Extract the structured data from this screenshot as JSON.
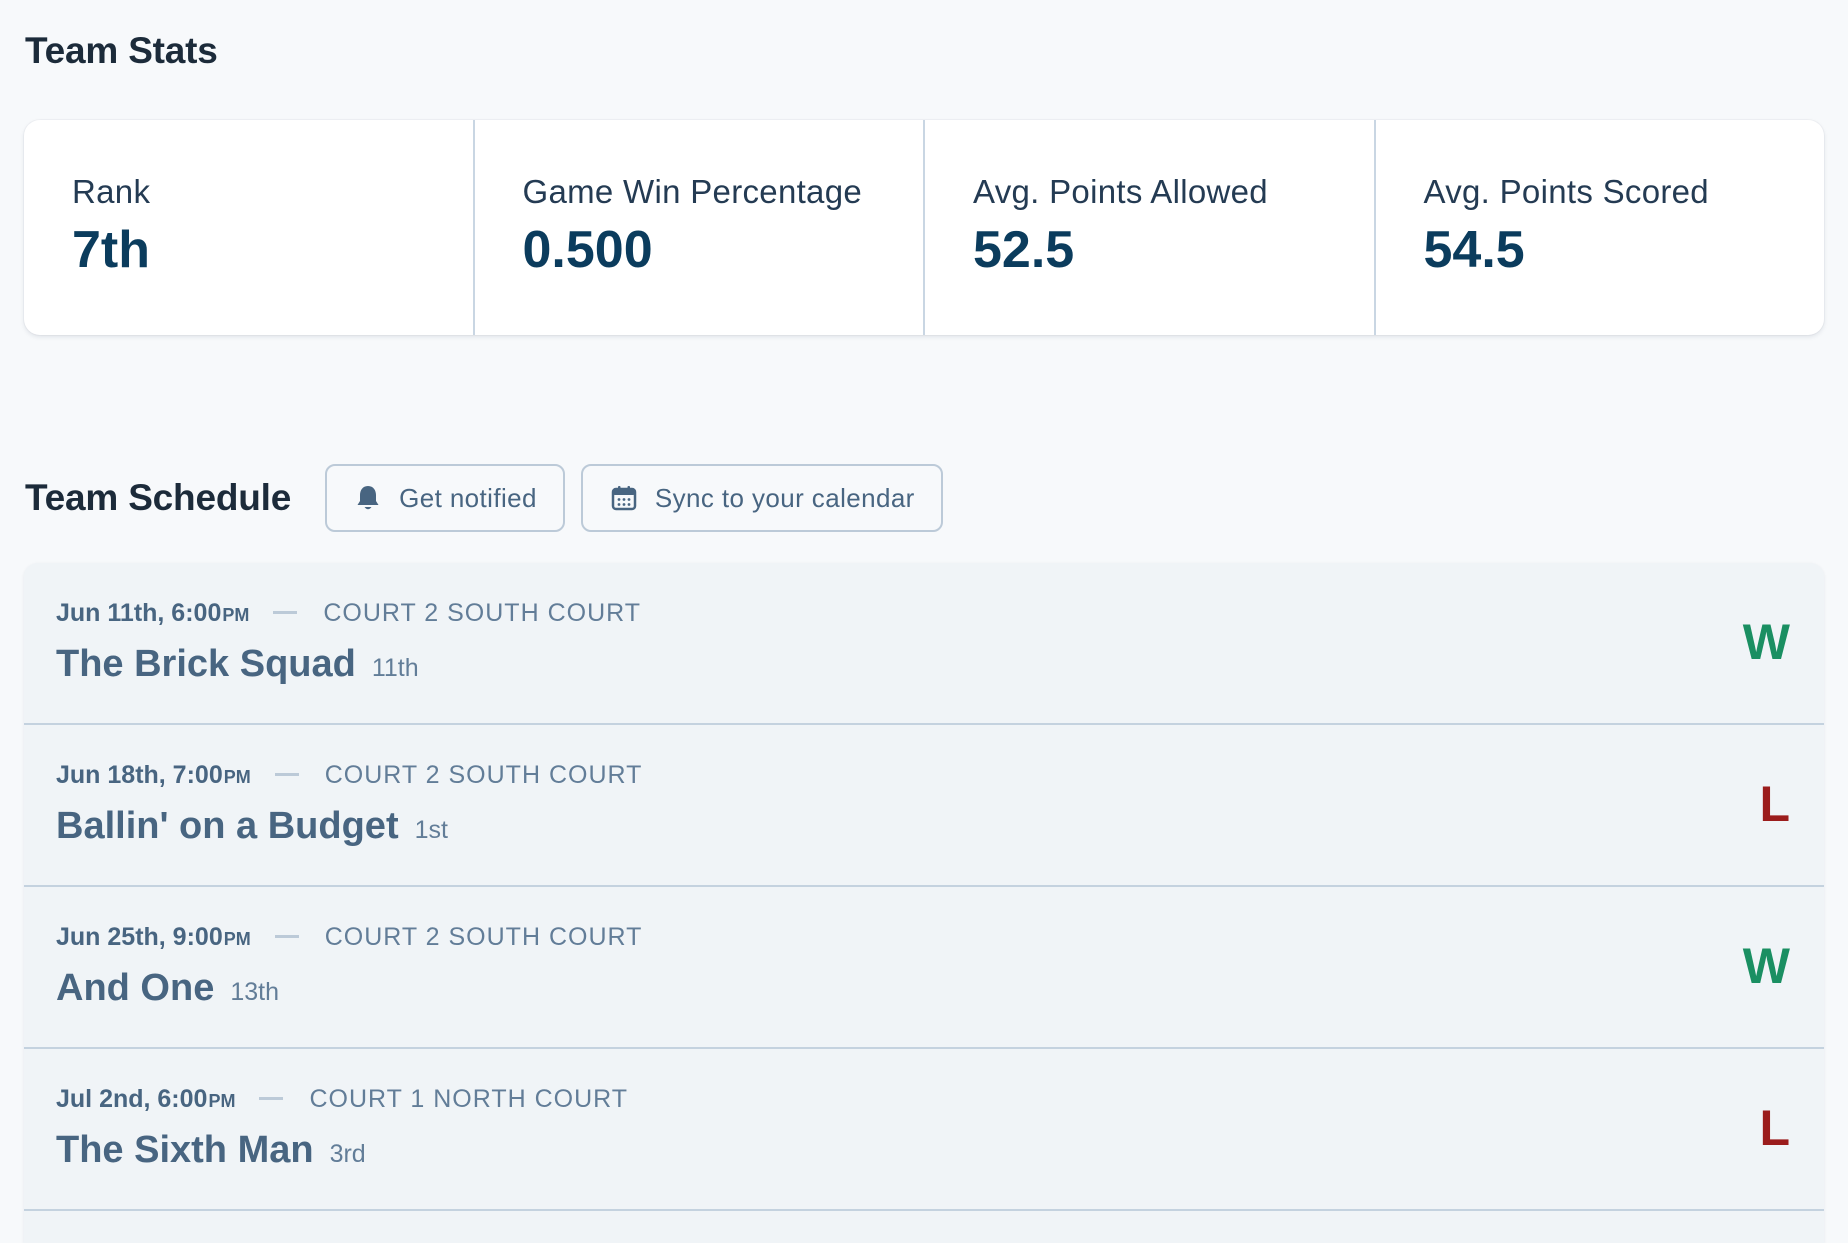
{
  "stats": {
    "title": "Team Stats",
    "items": [
      {
        "label": "Rank",
        "value": "7th"
      },
      {
        "label": "Game Win Percentage",
        "value": "0.500"
      },
      {
        "label": "Avg. Points Allowed",
        "value": "52.5"
      },
      {
        "label": "Avg. Points Scored",
        "value": "54.5"
      }
    ]
  },
  "schedule": {
    "title": "Team Schedule",
    "notify_button": {
      "label": "Get notified",
      "icon": "bell-icon"
    },
    "sync_button": {
      "label": "Sync to your calendar",
      "icon": "calendar-icon"
    },
    "games": [
      {
        "date": "Jun 11th, 6:00",
        "ampm": "PM",
        "court": "COURT 2 SOUTH COURT",
        "opponent": "The Brick Squad",
        "opponent_rank": "11th",
        "result": "W"
      },
      {
        "date": "Jun 18th, 7:00",
        "ampm": "PM",
        "court": "COURT 2 SOUTH COURT",
        "opponent": "Ballin' on a Budget",
        "opponent_rank": "1st",
        "result": "L"
      },
      {
        "date": "Jun 25th, 9:00",
        "ampm": "PM",
        "court": "COURT 2 SOUTH COURT",
        "opponent": "And One",
        "opponent_rank": "13th",
        "result": "W"
      },
      {
        "date": "Jul 2nd, 6:00",
        "ampm": "PM",
        "court": "COURT 1 NORTH COURT",
        "opponent": "The Sixth Man",
        "opponent_rank": "3rd",
        "result": "L"
      }
    ]
  },
  "colors": {
    "win": "#1a8f62",
    "loss": "#9b1c1c",
    "stat_value": "#0b3c5d",
    "background": "#f7f9fb"
  }
}
